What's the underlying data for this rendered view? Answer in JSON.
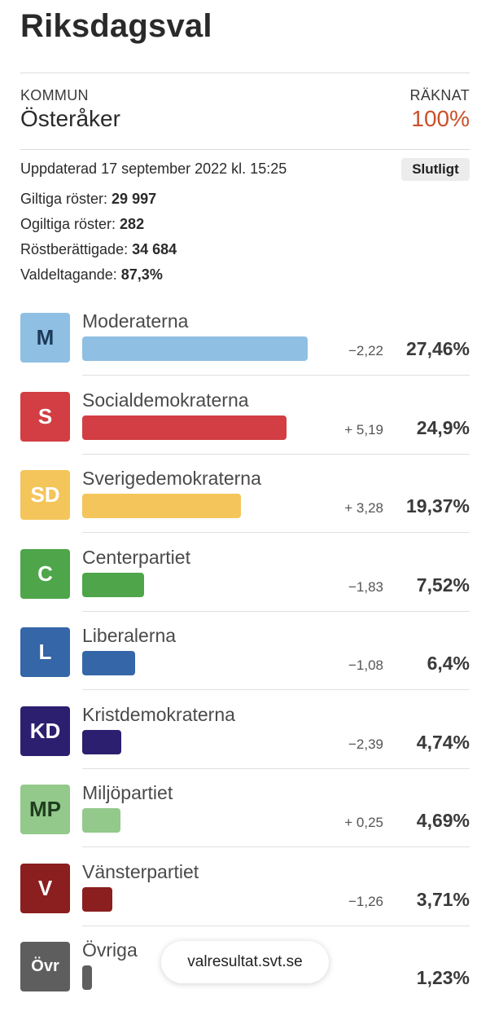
{
  "page": {
    "title": "Riksdagsval"
  },
  "header": {
    "municipality_label": "KOMMUN",
    "municipality_name": "Österåker",
    "counted_label": "RÄKNAT",
    "counted_value": "100%"
  },
  "summary": {
    "updated": "Uppdaterad 17 september 2022 kl. 15:25",
    "status_badge": "Slutligt",
    "stats": [
      {
        "label": "Giltiga röster: ",
        "value": "29 997"
      },
      {
        "label": "Ogiltiga röster: ",
        "value": "282"
      },
      {
        "label": "Röstberättigade: ",
        "value": "34 684"
      },
      {
        "label": "Valdeltagande: ",
        "value": "87,3%"
      }
    ]
  },
  "parties": [
    {
      "abbr": "M",
      "name": "Moderaterna",
      "change": "−2,22",
      "share": "27,46%",
      "share_value": 27.46,
      "color": "#8fbfe3",
      "text_color": "#1c3a5a"
    },
    {
      "abbr": "S",
      "name": "Socialdemokraterna",
      "change": "+ 5,19",
      "share": "24,9%",
      "share_value": 24.9,
      "color": "#d23e43",
      "text_color": "#ffffff"
    },
    {
      "abbr": "SD",
      "name": "Sverigedemokraterna",
      "change": "+ 3,28",
      "share": "19,37%",
      "share_value": 19.37,
      "color": "#f4c55a",
      "text_color": "#ffffff"
    },
    {
      "abbr": "C",
      "name": "Centerpartiet",
      "change": "−1,83",
      "share": "7,52%",
      "share_value": 7.52,
      "color": "#4ea54a",
      "text_color": "#ffffff"
    },
    {
      "abbr": "L",
      "name": "Liberalerna",
      "change": "−1,08",
      "share": "6,4%",
      "share_value": 6.4,
      "color": "#3466a8",
      "text_color": "#ffffff"
    },
    {
      "abbr": "KD",
      "name": "Kristdemokraterna",
      "change": "−2,39",
      "share": "4,74%",
      "share_value": 4.74,
      "color": "#2c1f70",
      "text_color": "#ffffff"
    },
    {
      "abbr": "MP",
      "name": "Miljöpartiet",
      "change": "+ 0,25",
      "share": "4,69%",
      "share_value": 4.69,
      "color": "#93c98b",
      "text_color": "#1f3d1f"
    },
    {
      "abbr": "V",
      "name": "Vänsterpartiet",
      "change": "−1,26",
      "share": "3,71%",
      "share_value": 3.71,
      "color": "#8b1e1e",
      "text_color": "#ffffff"
    },
    {
      "abbr": "Övr",
      "name": "Övriga",
      "change": "",
      "share": "1,23%",
      "share_value": 1.23,
      "color": "#5e5e5e",
      "text_color": "#ffffff"
    }
  ],
  "footer": {
    "url": "valresultat.svt.se"
  }
}
